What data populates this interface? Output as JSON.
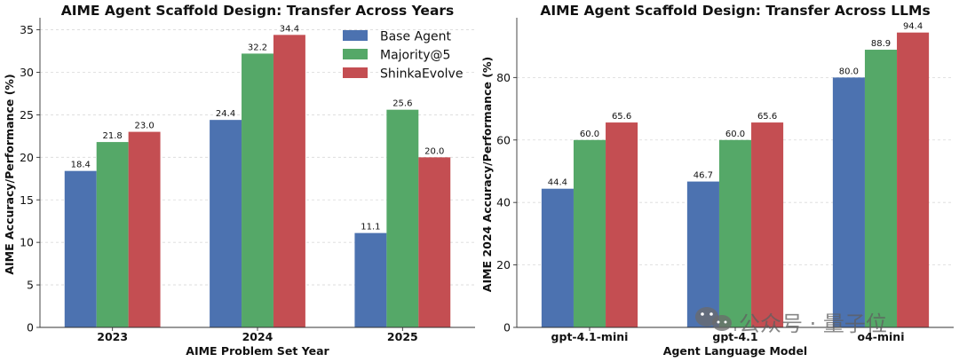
{
  "chart_data": [
    {
      "type": "bar",
      "title": "AIME Agent Scaffold Design: Transfer Across Years",
      "xlabel": "AIME Problem Set Year",
      "ylabel": "AIME Accuracy/Performance (%)",
      "ylim": [
        0,
        36
      ],
      "yticks": [
        0,
        5,
        10,
        15,
        20,
        25,
        30,
        35
      ],
      "grid": true,
      "legend": "top-right",
      "categories": [
        "2023",
        "2024",
        "2025"
      ],
      "series": [
        {
          "name": "Base Agent",
          "color": "#4c72b0",
          "values": [
            18.4,
            24.4,
            11.1
          ]
        },
        {
          "name": "Majority@5",
          "color": "#55a868",
          "values": [
            21.8,
            32.2,
            25.6
          ]
        },
        {
          "name": "ShinkaEvolve",
          "color": "#c44e52",
          "values": [
            23.0,
            34.4,
            20.0
          ]
        }
      ]
    },
    {
      "type": "bar",
      "title": "AIME Agent Scaffold Design: Transfer Across LLMs",
      "xlabel": "Agent Language Model",
      "ylabel": "AIME 2024 Accuracy/Performance (%)",
      "ylim": [
        0,
        98
      ],
      "yticks": [
        0,
        20,
        40,
        60,
        80
      ],
      "grid": true,
      "legend": "none",
      "categories": [
        "gpt-4.1-mini",
        "gpt-4.1",
        "o4-mini"
      ],
      "series": [
        {
          "name": "Base Agent",
          "color": "#4c72b0",
          "values": [
            44.4,
            46.7,
            80.0
          ]
        },
        {
          "name": "Majority@5",
          "color": "#55a868",
          "values": [
            60.0,
            60.0,
            88.9
          ]
        },
        {
          "name": "ShinkaEvolve",
          "color": "#c44e52",
          "values": [
            65.6,
            65.6,
            94.4
          ]
        }
      ]
    }
  ],
  "watermark": {
    "text": "公众号 · 量子位",
    "icon": "wechat-icon"
  }
}
